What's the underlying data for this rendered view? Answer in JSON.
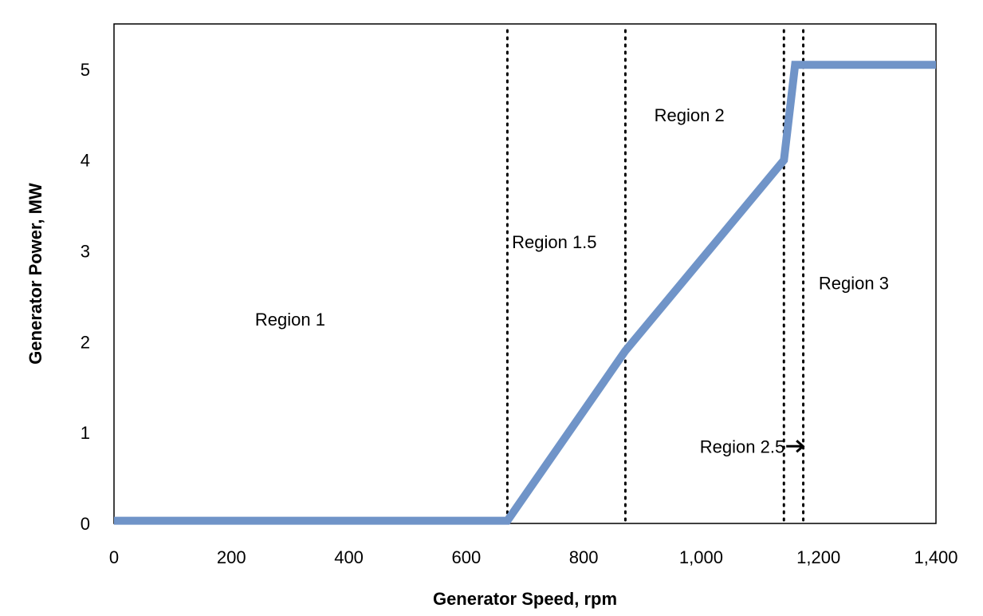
{
  "chart_data": {
    "type": "line",
    "title": "",
    "xlabel": "Generator Speed, rpm",
    "ylabel": "Generator Power, MW",
    "xlim": [
      0,
      1400
    ],
    "ylim": [
      0,
      5.5
    ],
    "x_ticks": [
      0,
      200,
      400,
      600,
      800,
      1000,
      1200,
      1400
    ],
    "x_tick_labels": [
      "0",
      "200",
      "400",
      "600",
      "800",
      "1,000",
      "1,200",
      "1,400"
    ],
    "y_ticks": [
      0,
      1,
      2,
      3,
      4,
      5
    ],
    "y_tick_labels": [
      "0",
      "1",
      "2",
      "3",
      "4",
      "5"
    ],
    "grid": false,
    "legend": "none",
    "series": [
      {
        "color": "#7094C8",
        "x": [
          0,
          670,
          871,
          1141,
          1160,
          1400
        ],
        "y": [
          0.03,
          0.03,
          1.9,
          4.0,
          5.05,
          5.05
        ]
      }
    ],
    "region_boundaries": [
      670,
      871,
      1141,
      1174
    ],
    "boundary_style": "dotted",
    "annotations": [
      {
        "text": "Region 1",
        "x": 300,
        "y": 2.25,
        "arrow": false
      },
      {
        "text": "Region 1.5",
        "x": 750,
        "y": 3.1,
        "arrow": false
      },
      {
        "text": "Region 2",
        "x": 980,
        "y": 4.5,
        "arrow": false
      },
      {
        "text": "Region 3",
        "x": 1260,
        "y": 2.65,
        "arrow": false
      },
      {
        "text": "Region 2.5",
        "x": 1070,
        "y": 0.85,
        "arrow": true
      }
    ]
  }
}
